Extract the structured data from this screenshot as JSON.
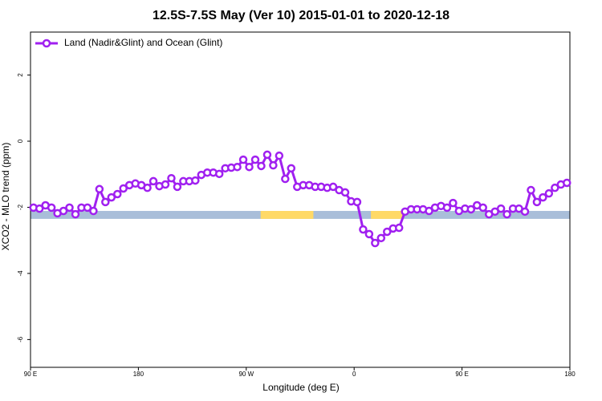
{
  "chart_data": {
    "type": "line",
    "title": "12.5S-7.5S May (Ver 10)   2015-01-01 to 2020-12-18",
    "x_label": "Longitude (deg E)",
    "y_label": "XCO2 - MLO trend (ppm)",
    "xlim": [
      90,
      540
    ],
    "xticks": [
      {
        "value": 90,
        "label": "90 E"
      },
      180,
      {
        "value": 270,
        "label": "90 W"
      },
      {
        "value": 360,
        "label": "0"
      },
      {
        "value": 450,
        "label": "90 E"
      },
      {
        "value": 540,
        "label": "180"
      }
    ],
    "ylim": [
      -6.84,
      3.3
    ],
    "yticks": [
      2,
      0,
      -2,
      -4,
      -6
    ],
    "legend": "top-left",
    "surface_band": {
      "range": [
        -2.35,
        -2.11
      ],
      "ocean_color": "#a9bed9",
      "land_color": "#ffd966",
      "land": [
        [
          282,
          326
        ],
        [
          374,
          401
        ]
      ]
    },
    "x": [
      92.5,
      97.5,
      102.5,
      107.5,
      112.5,
      117.5,
      122.5,
      127.5,
      132.5,
      137.5,
      142.5,
      147.5,
      152.5,
      157.5,
      162.5,
      167.5,
      172.5,
      177.5,
      182.5,
      187.5,
      192.5,
      197.5,
      202.5,
      207.5,
      212.5,
      217.5,
      222.5,
      227.5,
      232.5,
      237.5,
      242.5,
      247.5,
      252.5,
      257.5,
      262.5,
      267.5,
      272.5,
      277.5,
      282.5,
      287.5,
      292.5,
      297.5,
      302.5,
      307.5,
      312.5,
      317.5,
      322.5,
      327.5,
      332.5,
      337.5,
      342.5,
      347.5,
      352.5,
      357.5,
      362.5,
      367.5,
      372.5,
      377.5,
      382.5,
      387.5,
      392.5,
      397.5,
      402.5,
      407.5,
      412.5,
      417.5,
      422.5,
      427.5,
      432.5,
      437.5,
      442.5,
      447.5,
      452.5,
      457.5,
      462.5,
      467.5,
      472.5,
      477.5,
      482.5,
      487.5,
      492.5,
      497.5,
      502.5,
      507.5,
      512.5,
      517.5,
      522.5,
      527.5,
      532.5,
      537.5
    ],
    "series": [
      {
        "name": "Land (Nadir&Glint) and Ocean (Glint)",
        "color": "#a020f0",
        "values": [
          -2.01,
          -2.04,
          -1.94,
          -2.01,
          -2.18,
          -2.11,
          -2.01,
          -2.21,
          -2.01,
          -2.01,
          -2.11,
          -1.45,
          -1.84,
          -1.7,
          -1.6,
          -1.43,
          -1.33,
          -1.28,
          -1.33,
          -1.41,
          -1.21,
          -1.36,
          -1.31,
          -1.12,
          -1.38,
          -1.21,
          -1.21,
          -1.19,
          -1.02,
          -0.95,
          -0.95,
          -0.99,
          -0.82,
          -0.8,
          -0.78,
          -0.56,
          -0.78,
          -0.56,
          -0.75,
          -0.41,
          -0.73,
          -0.44,
          -1.14,
          -0.82,
          -1.38,
          -1.33,
          -1.33,
          -1.38,
          -1.38,
          -1.41,
          -1.38,
          -1.48,
          -1.55,
          -1.82,
          -1.84,
          -2.67,
          -2.81,
          -3.08,
          -2.93,
          -2.74,
          -2.64,
          -2.62,
          -2.13,
          -2.06,
          -2.06,
          -2.06,
          -2.11,
          -2.01,
          -1.96,
          -2.01,
          -1.87,
          -2.11,
          -2.04,
          -2.06,
          -1.94,
          -2.01,
          -2.21,
          -2.13,
          -2.04,
          -2.21,
          -2.04,
          -2.04,
          -2.13,
          -1.48,
          -1.84,
          -1.7,
          -1.58,
          -1.41,
          -1.31,
          -1.26
        ]
      }
    ]
  }
}
